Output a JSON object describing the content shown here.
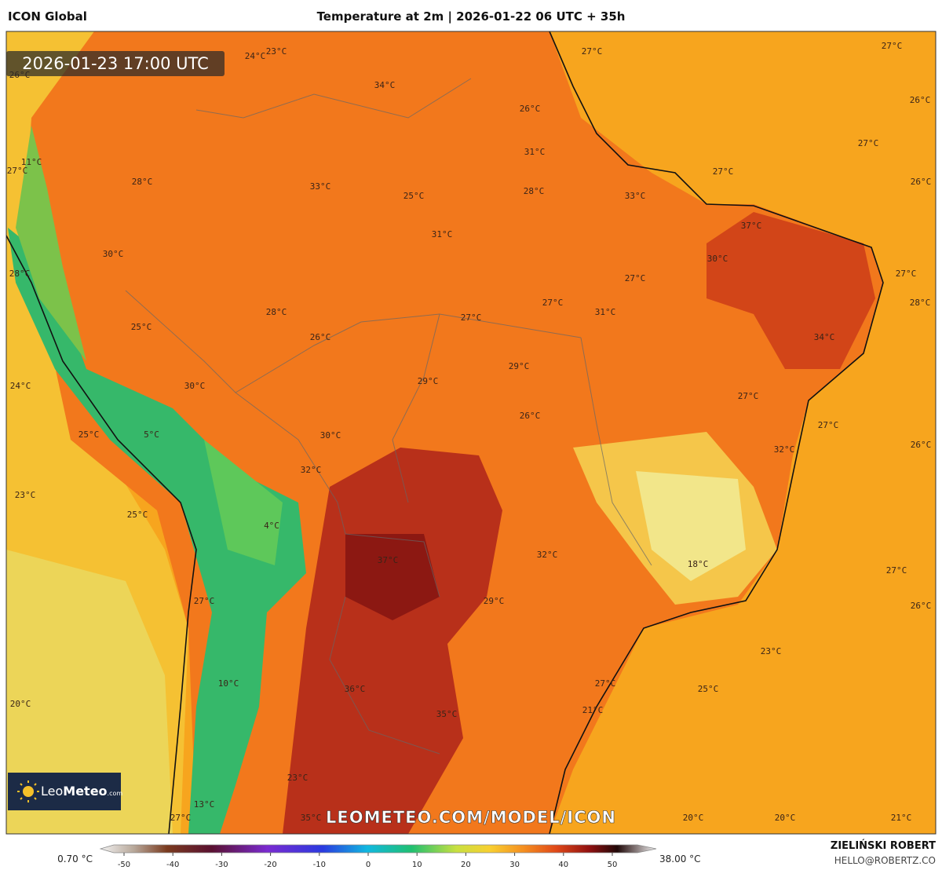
{
  "header": {
    "model": "ICON Global",
    "title": "Temperature at 2m | 2026-01-22 06 UTC + 35h"
  },
  "map": {
    "timestamp": "2026-01-23 17:00 UTC",
    "watermark": "LEOMETEO.COM/MODEL/ICON",
    "logo": {
      "brand_light": "Leo",
      "brand_bold": "Meteo",
      "domain": ".com"
    },
    "labels": [
      "24°C",
      "23°C",
      "26°C",
      "34°C",
      "27°C",
      "27°C",
      "26°C",
      "26°C",
      "27°C",
      "31°C",
      "11°C",
      "27°C",
      "27°C",
      "26°C",
      "28°C",
      "33°C",
      "28°C",
      "33°C",
      "25°C",
      "31°C",
      "37°C",
      "30°C",
      "30°C",
      "28°C",
      "27°C",
      "27°C",
      "28°C",
      "27°C",
      "31°C",
      "28°C",
      "27°C",
      "25°C",
      "26°C",
      "34°C",
      "29°C",
      "29°C",
      "24°C",
      "30°C",
      "27°C",
      "26°C",
      "27°C",
      "25°C",
      "5°C",
      "30°C",
      "26°C",
      "32°C",
      "32°C",
      "23°C",
      "25°C",
      "4°C",
      "37°C",
      "32°C",
      "18°C",
      "27°C",
      "27°C",
      "29°C",
      "26°C",
      "23°C",
      "10°C",
      "36°C",
      "27°C",
      "25°C",
      "20°C",
      "35°C",
      "21°C",
      "23°C",
      "13°C",
      "27°C",
      "35°C",
      "20°C",
      "20°C",
      "21°C"
    ]
  },
  "legend": {
    "min_label": "0.70 °C",
    "max_label": "38.00 °C",
    "ticks": [
      -50,
      -40,
      -30,
      -20,
      -10,
      0,
      10,
      20,
      30,
      40,
      50
    ]
  },
  "credits": {
    "author": "ZIELIŃSKI ROBERT",
    "email": "HELLO@ROBERTZ.CO"
  }
}
